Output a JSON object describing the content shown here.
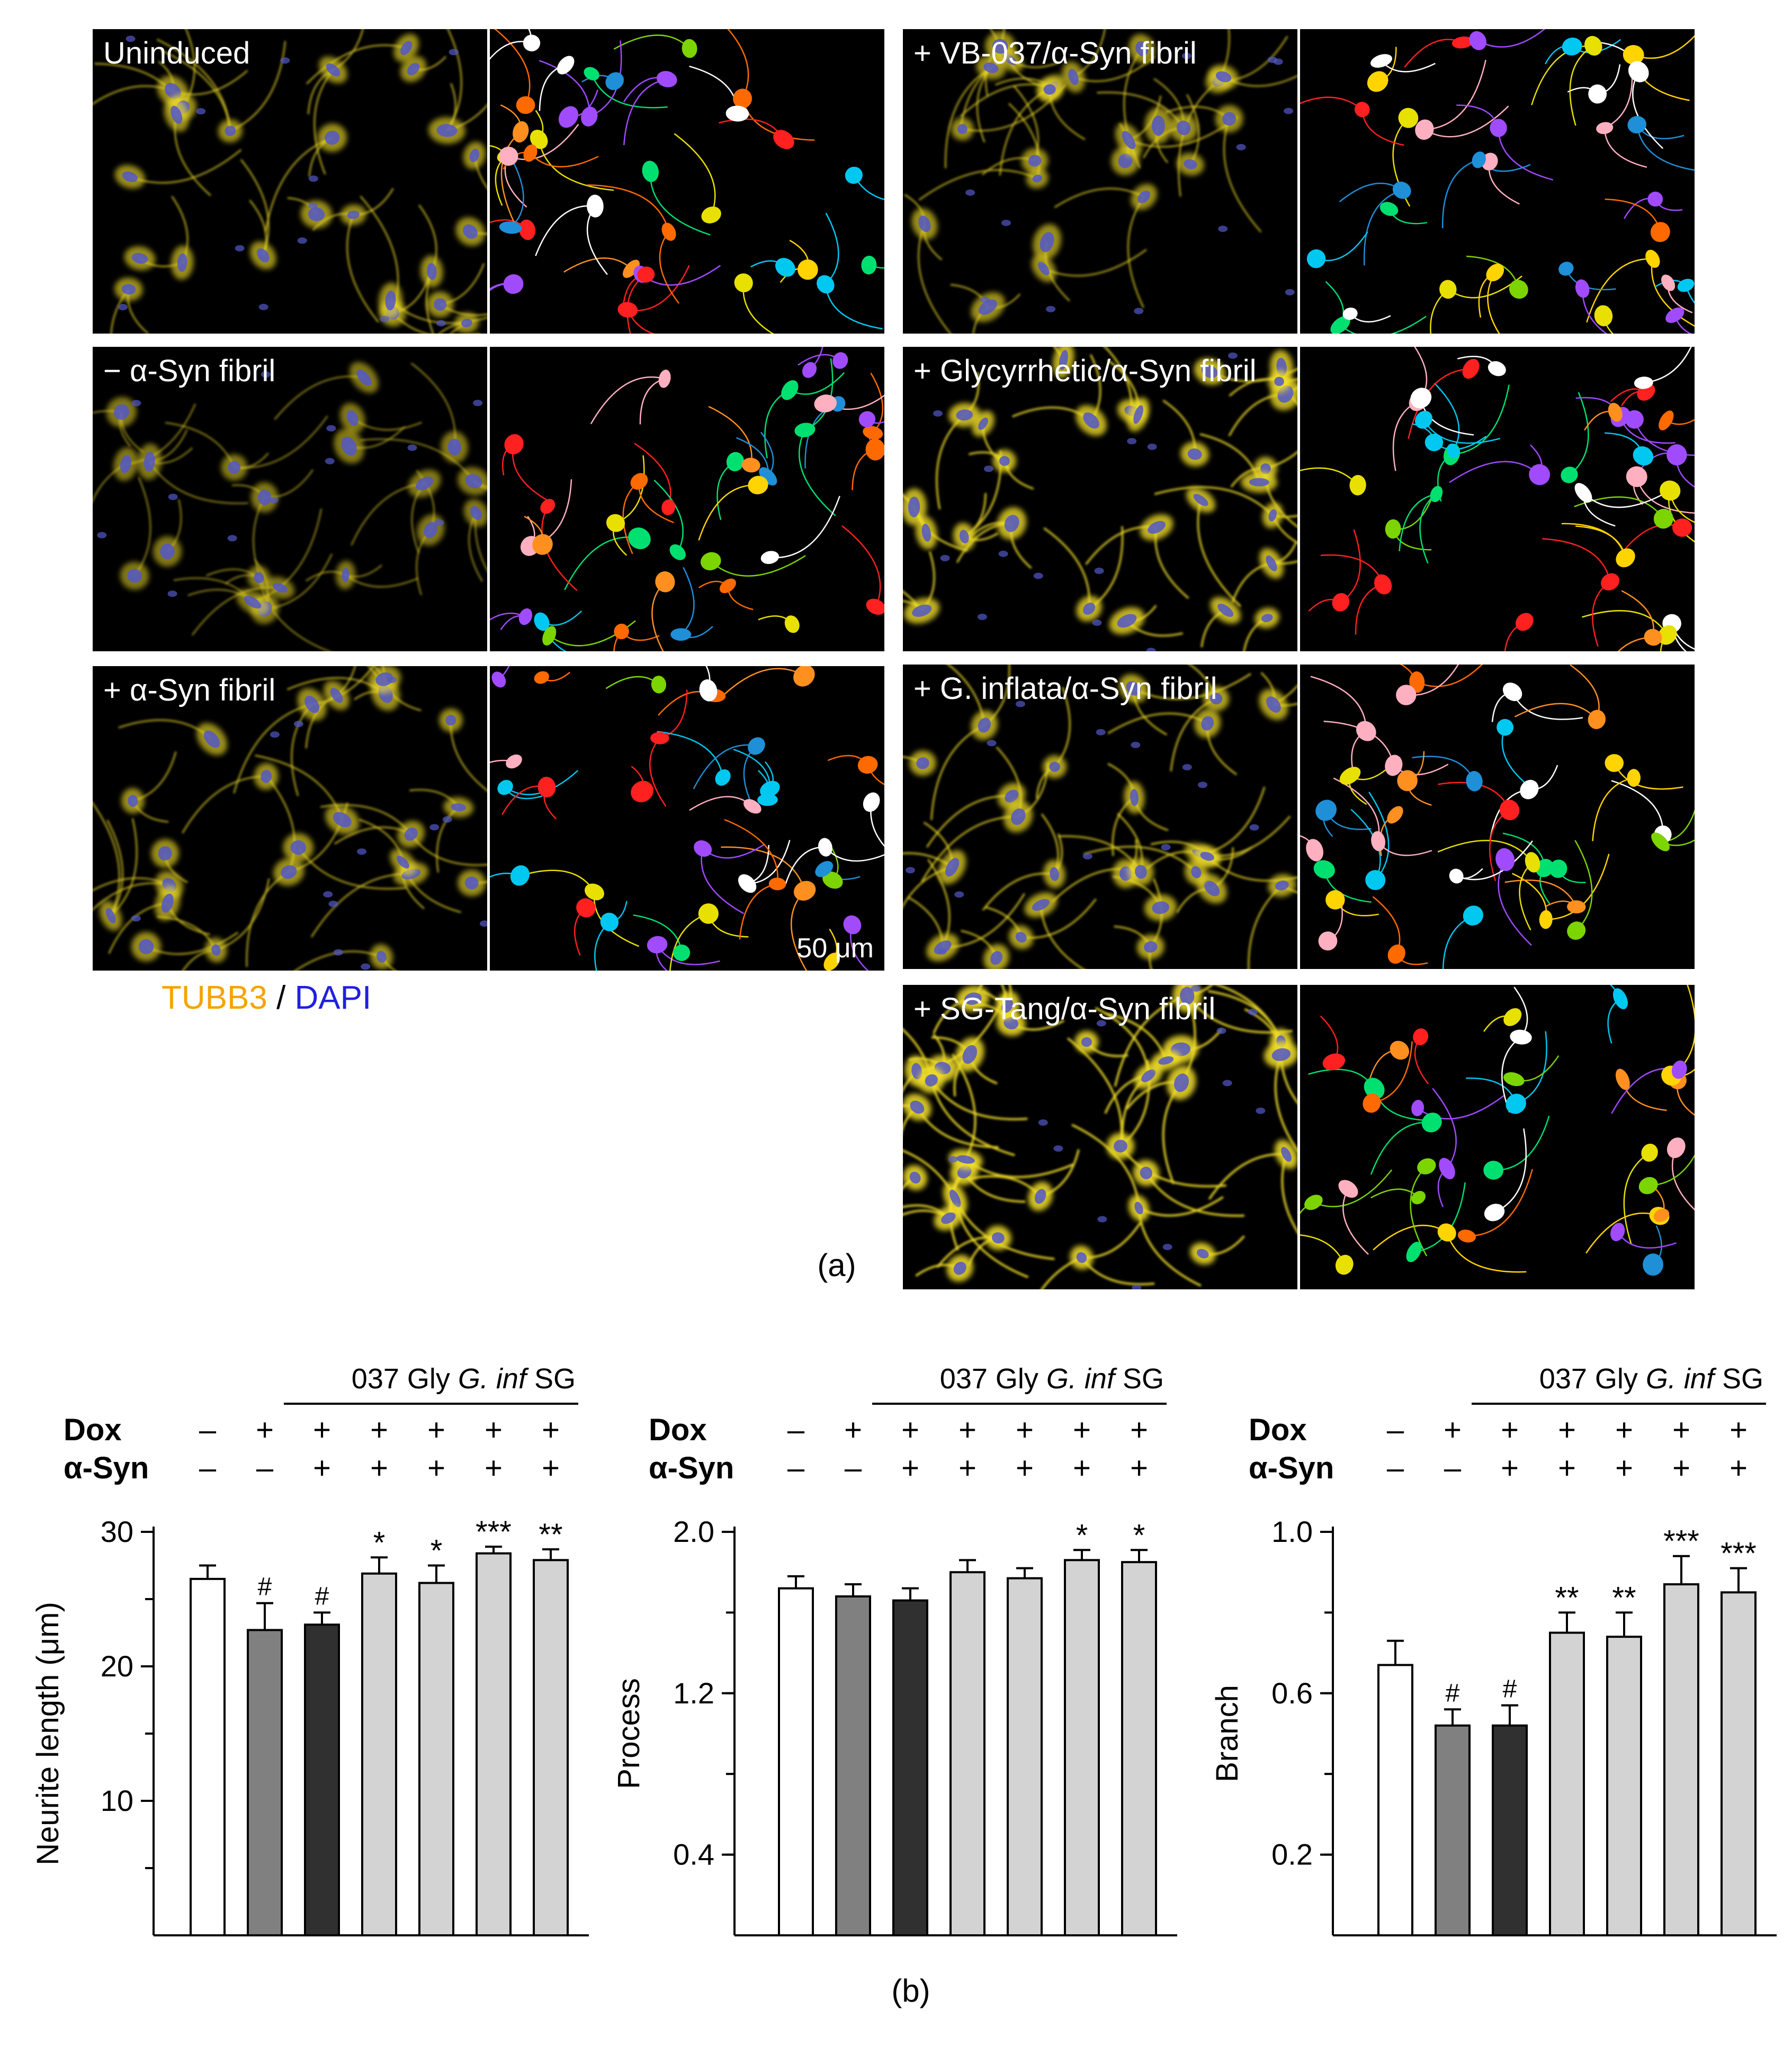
{
  "panel_a": {
    "caption": "(a)",
    "stain_label": {
      "tubb3": "TUBB3",
      "separator": " / ",
      "dapi": "DAPI"
    },
    "scale_bar": "50 μm",
    "rows": [
      {
        "label": "Uninduced",
        "brightness": 0.55,
        "seed": 11
      },
      {
        "label": "− α-Syn fibril",
        "brightness": 0.35,
        "seed": 23
      },
      {
        "label": "+ α-Syn fibril",
        "brightness": 0.55,
        "seed": 37
      },
      {
        "label": "+ VB-037/α-Syn fibril",
        "brightness": 0.55,
        "seed": 41
      },
      {
        "label": "+ Glycyrrhetic/α-Syn fibril",
        "brightness": 0.85,
        "seed": 53
      },
      {
        "label": "+ G. inflata/α-Syn fibril",
        "brightness": 0.7,
        "seed": 67
      },
      {
        "label": "+ SG-Tang/α-Syn fibril",
        "brightness": 1.0,
        "seed": 79
      }
    ],
    "colors": {
      "tubb3": "#f5a300",
      "dapi": "#1f1fe0",
      "cell": "#f3e02a",
      "nucleus": "#5358c8",
      "background": "#000000"
    },
    "segment_palette": [
      "#ff2020",
      "#ffd400",
      "#00c8f0",
      "#ff6a00",
      "#7cd400",
      "#a14bff",
      "#ffb0c0",
      "#ffffff",
      "#00e070",
      "#1f8fd8",
      "#ff9020",
      "#e8e000"
    ]
  },
  "panel_b": {
    "caption": "(b)",
    "group_header": [
      "037",
      "Gly",
      "G. inf",
      "SG"
    ],
    "row_labels": {
      "dox": "Dox",
      "asyn": "α-Syn"
    },
    "dox_signs": [
      "–",
      "+",
      "+",
      "+",
      "+",
      "+",
      "+"
    ],
    "asyn_signs": [
      "–",
      "–",
      "+",
      "+",
      "+",
      "+",
      "+"
    ],
    "bar_colors": [
      "#ffffff",
      "#808080",
      "#303030",
      "#d3d3d3",
      "#d3d3d3",
      "#d3d3d3",
      "#d3d3d3"
    ]
  },
  "chart_data": [
    {
      "type": "bar",
      "ylabel": "Neurite length (μm)",
      "ylim": [
        0,
        30
      ],
      "yticks": [
        10,
        20,
        30
      ],
      "values": [
        26.5,
        22.7,
        23.1,
        26.9,
        26.2,
        28.4,
        27.9
      ],
      "errors": [
        1.0,
        2.0,
        0.9,
        1.2,
        1.3,
        0.5,
        0.8
      ],
      "annotations": [
        "",
        "#",
        "#",
        "*",
        "*",
        "***",
        "**"
      ]
    },
    {
      "type": "bar",
      "ylabel": "Process",
      "ylim": [
        0,
        2.0
      ],
      "yticks": [
        0.4,
        1.2,
        2.0
      ],
      "values": [
        1.72,
        1.68,
        1.66,
        1.8,
        1.77,
        1.86,
        1.85
      ],
      "errors": [
        0.06,
        0.06,
        0.06,
        0.06,
        0.05,
        0.05,
        0.06
      ],
      "annotations": [
        "",
        "",
        "",
        "",
        "",
        "*",
        "*"
      ]
    },
    {
      "type": "bar",
      "ylabel": "Branch",
      "ylim": [
        0,
        1.0
      ],
      "yticks": [
        0.2,
        0.6,
        1.0
      ],
      "values": [
        0.67,
        0.52,
        0.52,
        0.75,
        0.74,
        0.87,
        0.85
      ],
      "errors": [
        0.06,
        0.04,
        0.05,
        0.05,
        0.06,
        0.07,
        0.06
      ],
      "annotations": [
        "",
        "#",
        "#",
        "**",
        "**",
        "***",
        "***"
      ]
    }
  ]
}
